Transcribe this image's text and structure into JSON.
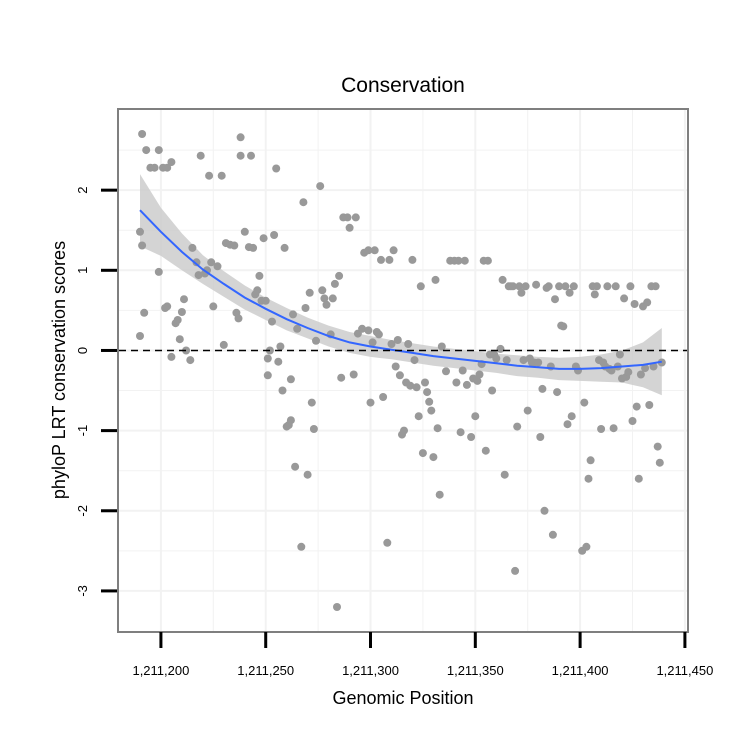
{
  "chart_data": {
    "type": "scatter",
    "title": "Conservation",
    "xlabel": "Genomic Position",
    "ylabel": "phyloP LRT conservation scores",
    "xlim": [
      1211180,
      1211451
    ],
    "ylim": [
      -3.5,
      3.0
    ],
    "x_ticks": [
      1211200,
      1211250,
      1211300,
      1211350,
      1211400,
      1211450
    ],
    "x_tick_labels": [
      "1,211,200",
      "1,211,250",
      "1,211,300",
      "1,211,350",
      "1,211,400",
      "1,211,450"
    ],
    "y_ticks": [
      -3,
      -2,
      -1,
      0,
      1,
      2
    ],
    "y_tick_labels": [
      "-3",
      "-2",
      "-1",
      "0",
      "1",
      "2"
    ],
    "reference_line": {
      "y": 0,
      "style": "dashed"
    },
    "colors": {
      "points": "#999999",
      "smooth": "#3366ff",
      "ribbon": "#cccccc",
      "frame": "#7f7f7f",
      "grid": "#f2f2f2"
    },
    "points": [
      [
        1211191,
        2.7
      ],
      [
        1211193,
        2.5
      ],
      [
        1211195,
        2.28
      ],
      [
        1211197,
        2.28
      ],
      [
        1211199,
        2.5
      ],
      [
        1211201,
        2.28
      ],
      [
        1211203,
        2.28
      ],
      [
        1211205,
        2.35
      ],
      [
        1211190,
        1.48
      ],
      [
        1211191,
        1.31
      ],
      [
        1211192,
        0.47
      ],
      [
        1211190,
        0.18
      ],
      [
        1211199,
        0.98
      ],
      [
        1211203,
        0.55
      ],
      [
        1211202,
        0.53
      ],
      [
        1211205,
        -0.08
      ],
      [
        1211207,
        0.34
      ],
      [
        1211208,
        0.38
      ],
      [
        1211209,
        0.14
      ],
      [
        1211210,
        0.48
      ],
      [
        1211211,
        0.64
      ],
      [
        1211212,
        0.0
      ],
      [
        1211214,
        -0.12
      ],
      [
        1211215,
        1.28
      ],
      [
        1211217,
        1.1
      ],
      [
        1211218,
        0.94
      ],
      [
        1211219,
        2.43
      ],
      [
        1211221,
        0.96
      ],
      [
        1211222,
        1.0
      ],
      [
        1211223,
        2.18
      ],
      [
        1211224,
        1.1
      ],
      [
        1211225,
        0.55
      ],
      [
        1211227,
        1.05
      ],
      [
        1211229,
        2.18
      ],
      [
        1211230,
        0.07
      ],
      [
        1211231,
        1.34
      ],
      [
        1211233,
        1.32
      ],
      [
        1211235,
        1.31
      ],
      [
        1211236,
        0.47
      ],
      [
        1211237,
        0.4
      ],
      [
        1211238,
        2.43
      ],
      [
        1211238,
        2.66
      ],
      [
        1211240,
        1.48
      ],
      [
        1211242,
        1.29
      ],
      [
        1211243,
        2.43
      ],
      [
        1211244,
        1.28
      ],
      [
        1211245,
        0.7
      ],
      [
        1211246,
        0.75
      ],
      [
        1211247,
        0.93
      ],
      [
        1211248,
        0.62
      ],
      [
        1211249,
        1.4
      ],
      [
        1211250,
        0.62
      ],
      [
        1211251,
        -0.1
      ],
      [
        1211251,
        -0.31
      ],
      [
        1211252,
        0.0
      ],
      [
        1211253,
        0.36
      ],
      [
        1211254,
        1.44
      ],
      [
        1211255,
        2.27
      ],
      [
        1211256,
        -0.14
      ],
      [
        1211257,
        0.05
      ],
      [
        1211258,
        -0.5
      ],
      [
        1211259,
        1.28
      ],
      [
        1211260,
        -0.95
      ],
      [
        1211261,
        -0.93
      ],
      [
        1211262,
        -0.87
      ],
      [
        1211262,
        -0.36
      ],
      [
        1211263,
        0.45
      ],
      [
        1211264,
        -1.45
      ],
      [
        1211265,
        0.27
      ],
      [
        1211267,
        -2.45
      ],
      [
        1211268,
        1.85
      ],
      [
        1211269,
        0.53
      ],
      [
        1211270,
        -1.55
      ],
      [
        1211271,
        0.72
      ],
      [
        1211272,
        -0.65
      ],
      [
        1211273,
        -0.98
      ],
      [
        1211274,
        0.12
      ],
      [
        1211276,
        2.05
      ],
      [
        1211277,
        0.75
      ],
      [
        1211278,
        0.65
      ],
      [
        1211279,
        0.57
      ],
      [
        1211281,
        0.2
      ],
      [
        1211282,
        0.65
      ],
      [
        1211283,
        0.83
      ],
      [
        1211284,
        -3.2
      ],
      [
        1211285,
        0.93
      ],
      [
        1211286,
        -0.34
      ],
      [
        1211287,
        1.66
      ],
      [
        1211289,
        1.66
      ],
      [
        1211290,
        1.53
      ],
      [
        1211292,
        -0.3
      ],
      [
        1211293,
        1.66
      ],
      [
        1211294,
        0.21
      ],
      [
        1211296,
        0.27
      ],
      [
        1211297,
        1.22
      ],
      [
        1211299,
        1.25
      ],
      [
        1211299,
        0.25
      ],
      [
        1211300,
        -0.65
      ],
      [
        1211301,
        0.1
      ],
      [
        1211302,
        1.25
      ],
      [
        1211303,
        0.23
      ],
      [
        1211304,
        0.2
      ],
      [
        1211305,
        1.13
      ],
      [
        1211306,
        -0.58
      ],
      [
        1211308,
        -2.4
      ],
      [
        1211309,
        1.13
      ],
      [
        1211310,
        0.08
      ],
      [
        1211311,
        1.25
      ],
      [
        1211312,
        -0.2
      ],
      [
        1211313,
        0.13
      ],
      [
        1211314,
        -0.31
      ],
      [
        1211315,
        -1.05
      ],
      [
        1211316,
        -1.0
      ],
      [
        1211317,
        -0.4
      ],
      [
        1211318,
        0.08
      ],
      [
        1211319,
        -0.44
      ],
      [
        1211320,
        1.13
      ],
      [
        1211321,
        -0.12
      ],
      [
        1211322,
        -0.46
      ],
      [
        1211323,
        -0.82
      ],
      [
        1211324,
        0.8
      ],
      [
        1211325,
        -1.28
      ],
      [
        1211326,
        -0.4
      ],
      [
        1211327,
        -0.52
      ],
      [
        1211328,
        -0.64
      ],
      [
        1211329,
        -0.75
      ],
      [
        1211330,
        -1.33
      ],
      [
        1211331,
        0.88
      ],
      [
        1211332,
        -0.97
      ],
      [
        1211333,
        -1.8
      ],
      [
        1211334,
        0.05
      ],
      [
        1211336,
        -0.26
      ],
      [
        1211338,
        1.12
      ],
      [
        1211340,
        1.12
      ],
      [
        1211341,
        -0.4
      ],
      [
        1211342,
        1.12
      ],
      [
        1211343,
        -1.02
      ],
      [
        1211344,
        -0.25
      ],
      [
        1211345,
        1.12
      ],
      [
        1211346,
        -0.43
      ],
      [
        1211348,
        -1.08
      ],
      [
        1211349,
        -0.35
      ],
      [
        1211350,
        -0.82
      ],
      [
        1211351,
        -0.38
      ],
      [
        1211352,
        -0.3
      ],
      [
        1211353,
        -0.17
      ],
      [
        1211354,
        1.12
      ],
      [
        1211355,
        -1.25
      ],
      [
        1211356,
        1.12
      ],
      [
        1211357,
        -0.05
      ],
      [
        1211358,
        -0.5
      ],
      [
        1211359,
        -0.05
      ],
      [
        1211360,
        -0.1
      ],
      [
        1211362,
        0.02
      ],
      [
        1211363,
        0.88
      ],
      [
        1211364,
        -1.55
      ],
      [
        1211365,
        -0.12
      ],
      [
        1211366,
        0.8
      ],
      [
        1211367,
        0.8
      ],
      [
        1211368,
        0.8
      ],
      [
        1211369,
        -2.75
      ],
      [
        1211370,
        -0.95
      ],
      [
        1211371,
        0.8
      ],
      [
        1211372,
        0.72
      ],
      [
        1211373,
        -0.12
      ],
      [
        1211374,
        0.8
      ],
      [
        1211375,
        -0.75
      ],
      [
        1211376,
        -0.1
      ],
      [
        1211377,
        -0.15
      ],
      [
        1211378,
        -0.15
      ],
      [
        1211379,
        0.82
      ],
      [
        1211380,
        -0.15
      ],
      [
        1211381,
        -1.08
      ],
      [
        1211382,
        -0.48
      ],
      [
        1211383,
        -2.0
      ],
      [
        1211384,
        0.78
      ],
      [
        1211385,
        0.8
      ],
      [
        1211386,
        -0.2
      ],
      [
        1211387,
        -2.3
      ],
      [
        1211388,
        0.64
      ],
      [
        1211389,
        -0.52
      ],
      [
        1211390,
        0.8
      ],
      [
        1211391,
        0.31
      ],
      [
        1211392,
        0.3
      ],
      [
        1211393,
        0.8
      ],
      [
        1211394,
        -0.92
      ],
      [
        1211395,
        0.72
      ],
      [
        1211396,
        -0.82
      ],
      [
        1211397,
        0.8
      ],
      [
        1211398,
        -0.2
      ],
      [
        1211399,
        -0.25
      ],
      [
        1211401,
        -2.5
      ],
      [
        1211402,
        -0.65
      ],
      [
        1211403,
        -2.45
      ],
      [
        1211404,
        -1.6
      ],
      [
        1211405,
        -1.37
      ],
      [
        1211406,
        0.8
      ],
      [
        1211407,
        0.7
      ],
      [
        1211408,
        0.8
      ],
      [
        1211409,
        -0.12
      ],
      [
        1211410,
        -0.98
      ],
      [
        1211411,
        -0.15
      ],
      [
        1211412,
        -0.2
      ],
      [
        1211413,
        0.8
      ],
      [
        1211414,
        -0.23
      ],
      [
        1211415,
        -0.25
      ],
      [
        1211416,
        -0.97
      ],
      [
        1211417,
        0.8
      ],
      [
        1211418,
        -0.2
      ],
      [
        1211419,
        -0.05
      ],
      [
        1211420,
        -0.35
      ],
      [
        1211421,
        0.65
      ],
      [
        1211422,
        -0.33
      ],
      [
        1211423,
        -0.27
      ],
      [
        1211424,
        0.8
      ],
      [
        1211425,
        -0.88
      ],
      [
        1211426,
        0.58
      ],
      [
        1211427,
        -0.7
      ],
      [
        1211428,
        -1.6
      ],
      [
        1211429,
        -0.3
      ],
      [
        1211430,
        0.55
      ],
      [
        1211431,
        -0.22
      ],
      [
        1211432,
        0.6
      ],
      [
        1211433,
        -0.68
      ],
      [
        1211434,
        0.8
      ],
      [
        1211435,
        -0.2
      ],
      [
        1211436,
        0.8
      ],
      [
        1211437,
        -1.2
      ],
      [
        1211438,
        -1.4
      ],
      [
        1211439,
        -0.15
      ]
    ],
    "smooth_curve": {
      "x": [
        1211190,
        1211200,
        1211210,
        1211220,
        1211230,
        1211240,
        1211250,
        1211260,
        1211270,
        1211280,
        1211290,
        1211300,
        1211310,
        1211320,
        1211330,
        1211340,
        1211350,
        1211360,
        1211370,
        1211380,
        1211390,
        1211400,
        1211410,
        1211420,
        1211430,
        1211439
      ],
      "y": [
        1.75,
        1.48,
        1.23,
        1.01,
        0.83,
        0.66,
        0.52,
        0.39,
        0.28,
        0.18,
        0.1,
        0.05,
        0.01,
        -0.03,
        -0.07,
        -0.1,
        -0.13,
        -0.16,
        -0.19,
        -0.21,
        -0.23,
        -0.23,
        -0.22,
        -0.2,
        -0.18,
        -0.14
      ],
      "upper": [
        2.2,
        1.78,
        1.46,
        1.19,
        0.99,
        0.81,
        0.66,
        0.53,
        0.41,
        0.31,
        0.23,
        0.18,
        0.13,
        0.09,
        0.05,
        0.02,
        -0.01,
        -0.04,
        -0.06,
        -0.08,
        -0.09,
        -0.08,
        -0.05,
        0.0,
        0.1,
        0.28
      ],
      "lower": [
        1.3,
        1.18,
        1.0,
        0.83,
        0.67,
        0.51,
        0.38,
        0.25,
        0.15,
        0.05,
        -0.03,
        -0.08,
        -0.11,
        -0.15,
        -0.19,
        -0.22,
        -0.25,
        -0.28,
        -0.32,
        -0.34,
        -0.37,
        -0.38,
        -0.39,
        -0.4,
        -0.46,
        -0.56
      ]
    }
  }
}
